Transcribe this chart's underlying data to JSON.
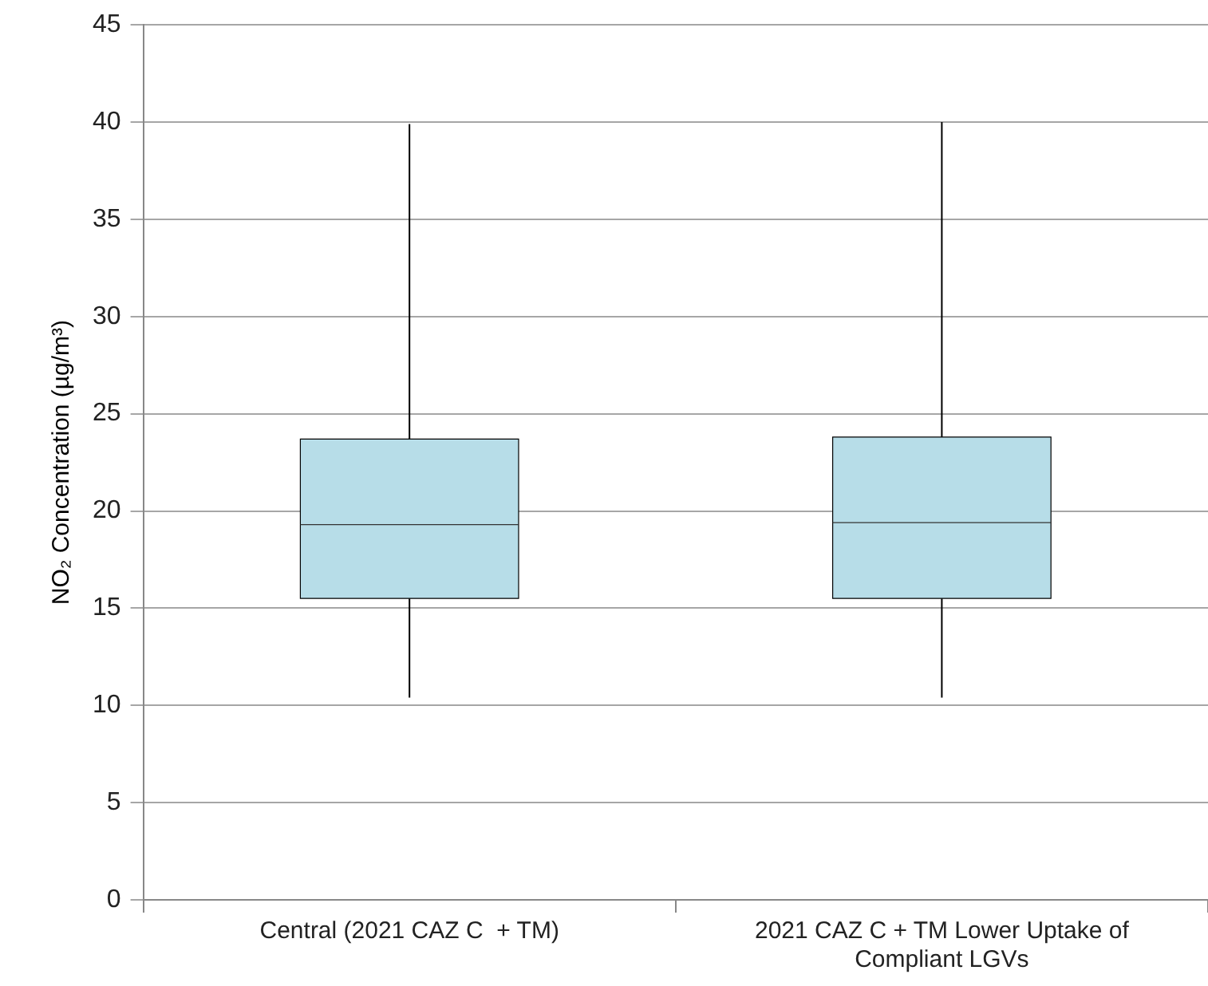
{
  "chart_data": {
    "type": "box",
    "ylabel": "NO₂ Concentration (µg/m³)",
    "categories": [
      "Central (2021 CAZ C  + TM)",
      "2021 CAZ C + TM Lower Uptake of Compliant LGVs"
    ],
    "color": "#b7dde8",
    "boxes": [
      {
        "low": 10.4,
        "q1": 15.5,
        "median": 19.3,
        "q3": 23.7,
        "high": 39.9
      },
      {
        "low": 10.4,
        "q1": 15.5,
        "median": 19.4,
        "q3": 23.8,
        "high": 40.0
      }
    ],
    "ylim": [
      0,
      45
    ],
    "yticks": [
      0,
      5,
      10,
      15,
      20,
      25,
      30,
      35,
      40,
      45
    ],
    "grid": "y",
    "legend": false
  }
}
